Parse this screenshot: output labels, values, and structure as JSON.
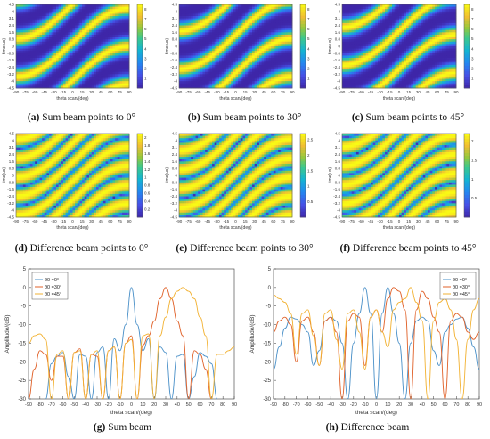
{
  "captions": [
    {
      "letter": "(a)",
      "text": "Sum beam points to 0°"
    },
    {
      "letter": "(b)",
      "text": "Sum beam points to 30°"
    },
    {
      "letter": "(c)",
      "text": "Sum beam points to 45°"
    },
    {
      "letter": "(d)",
      "text": "Difference beam points to 0°"
    },
    {
      "letter": "(e)",
      "text": "Difference beam points to 30°"
    },
    {
      "letter": "(f)",
      "text": "Difference beam points to 45°"
    },
    {
      "letter": "(g)",
      "text": "Sum beam"
    },
    {
      "letter": "(h)",
      "text": "Difference beam"
    }
  ],
  "colors": {
    "series_0": "#4a90c8",
    "series_30": "#e0622a",
    "series_45": "#f2b233",
    "map_low": "#3d2aa0",
    "map_high": "#f7e82d"
  },
  "chart_data": [
    {
      "type": "heatmap",
      "id": "a",
      "xlabel": "theta scan/(deg)",
      "ylabel": "time(us)",
      "xticks": [
        "-90",
        "-75",
        "-60",
        "-45",
        "-30",
        "-15",
        "0",
        "15",
        "30",
        "45",
        "60",
        "75",
        "90"
      ],
      "yticks": [
        "4.5",
        "4",
        "3.1",
        "2.4",
        "1.6",
        "0.8",
        "0",
        "-0.8",
        "-1.6",
        "-2.4",
        "-3.2",
        "-4",
        "-4.5"
      ],
      "colorbar_ticks": [
        "8",
        "7",
        "6",
        "5",
        "4",
        "3",
        "2",
        "1"
      ],
      "xlim": [
        -90,
        90
      ],
      "ylim": [
        -4.5,
        4.5
      ],
      "clim": [
        0,
        8.5
      ],
      "beam_pointing_deg": 0
    },
    {
      "type": "heatmap",
      "id": "b",
      "xlabel": "theta scan/(deg)",
      "ylabel": "time(us)",
      "xticks": [
        "-90",
        "-75",
        "-60",
        "-45",
        "-30",
        "-15",
        "0",
        "15",
        "30",
        "45",
        "60",
        "75",
        "90"
      ],
      "yticks": [
        "4.5",
        "4",
        "3.1",
        "2.4",
        "1.6",
        "0.8",
        "0",
        "-0.8",
        "-1.6",
        "-2.4",
        "-3.2",
        "-4",
        "-4.5"
      ],
      "colorbar_ticks": [
        "8",
        "7",
        "6",
        "5",
        "4",
        "3",
        "2",
        "1"
      ],
      "xlim": [
        -90,
        90
      ],
      "ylim": [
        -4.5,
        4.5
      ],
      "clim": [
        0,
        8.5
      ],
      "beam_pointing_deg": 30
    },
    {
      "type": "heatmap",
      "id": "c",
      "xlabel": "theta scan/(deg)",
      "ylabel": "time(us)",
      "xticks": [
        "-90",
        "-75",
        "-60",
        "-45",
        "-30",
        "-15",
        "0",
        "15",
        "30",
        "45",
        "60",
        "75",
        "90"
      ],
      "yticks": [
        "4.5",
        "4",
        "3.1",
        "2.4",
        "1.6",
        "0.8",
        "0",
        "-0.8",
        "-1.6",
        "-2.4",
        "-3.2",
        "-4",
        "-4.5"
      ],
      "colorbar_ticks": [
        "8",
        "7",
        "6",
        "5",
        "4",
        "3",
        "2",
        "1"
      ],
      "xlim": [
        -90,
        90
      ],
      "ylim": [
        -4.5,
        4.5
      ],
      "clim": [
        0,
        8.5
      ],
      "beam_pointing_deg": 45
    },
    {
      "type": "heatmap",
      "id": "d",
      "xlabel": "theta scan/(deg)",
      "ylabel": "time(us)",
      "xticks": [
        "-90",
        "-75",
        "-60",
        "-45",
        "-30",
        "-15",
        "0",
        "15",
        "30",
        "45",
        "60",
        "75",
        "90"
      ],
      "yticks": [
        "4.5",
        "4",
        "3.1",
        "2.4",
        "1.6",
        "0.8",
        "0",
        "-0.8",
        "-1.6",
        "-2.4",
        "-3.2",
        "-4",
        "-4.5"
      ],
      "colorbar_ticks": [
        "2",
        "1.8",
        "1.6",
        "1.4",
        "1.2",
        "1",
        "0.8",
        "0.6",
        "0.4",
        "0.2"
      ],
      "xlim": [
        -90,
        90
      ],
      "ylim": [
        -4.5,
        4.5
      ],
      "clim": [
        0,
        2.1
      ],
      "beam_pointing_deg": 0
    },
    {
      "type": "heatmap",
      "id": "e",
      "xlabel": "theta scan/(deg)",
      "ylabel": "time(us)",
      "xticks": [
        "-90",
        "-75",
        "-60",
        "-45",
        "-30",
        "-15",
        "0",
        "15",
        "30",
        "45",
        "60",
        "75",
        "90"
      ],
      "yticks": [
        "4.5",
        "4",
        "3.1",
        "2.4",
        "1.6",
        "0.8",
        "0",
        "-0.8",
        "-1.6",
        "-2.4",
        "-3.2",
        "-4",
        "-4.5"
      ],
      "colorbar_ticks": [
        "2.5",
        "2",
        "1.5",
        "1",
        "0.5"
      ],
      "xlim": [
        -90,
        90
      ],
      "ylim": [
        -4.5,
        4.5
      ],
      "clim": [
        0,
        2.7
      ],
      "beam_pointing_deg": 30
    },
    {
      "type": "heatmap",
      "id": "f",
      "xlabel": "theta scan/(deg)",
      "ylabel": "time(us)",
      "xticks": [
        "-90",
        "-75",
        "-60",
        "-45",
        "-30",
        "-15",
        "0",
        "15",
        "30",
        "45",
        "60",
        "75",
        "90"
      ],
      "yticks": [
        "4.5",
        "4",
        "3.1",
        "2.4",
        "1.6",
        "0.8",
        "0",
        "-0.8",
        "-1.6",
        "-2.4",
        "-3.2",
        "-4",
        "-4.5"
      ],
      "colorbar_ticks": [
        "2",
        "1.5",
        "1",
        "0.5"
      ],
      "xlim": [
        -90,
        90
      ],
      "ylim": [
        -4.5,
        4.5
      ],
      "clim": [
        0,
        2.2
      ],
      "beam_pointing_deg": 45
    },
    {
      "type": "line",
      "id": "g",
      "xlabel": "theta scan/(deg)",
      "ylabel": "Amplitude/(dB)",
      "xlim": [
        -90,
        90
      ],
      "ylim": [
        -30,
        5
      ],
      "xticks": [
        -90,
        -80,
        -70,
        -60,
        -50,
        -40,
        -30,
        -20,
        -10,
        0,
        10,
        20,
        30,
        40,
        50,
        60,
        70,
        80,
        90
      ],
      "yticks": [
        5,
        0,
        -5,
        -10,
        -15,
        -20,
        -25,
        -30
      ],
      "legend_position": "top-left",
      "series": [
        {
          "name": "θ0 =0°",
          "color": "#4a90c8",
          "x": [
            -75,
            -70,
            -65,
            -60,
            -55,
            -50,
            -45,
            -40,
            -35,
            -30,
            -25,
            -20,
            -15,
            -10,
            -5,
            0,
            5,
            10,
            15,
            20,
            25,
            30,
            35,
            40,
            45,
            50,
            55,
            60,
            65,
            70,
            75
          ],
          "y": [
            -30,
            -20.5,
            -18.5,
            -17.5,
            -24,
            -30,
            -18,
            -18.5,
            -30,
            -17.5,
            -16,
            -30,
            -13.8,
            -17,
            -10,
            0,
            -10,
            -17,
            -13.8,
            -30,
            -16,
            -17.5,
            -30,
            -18.5,
            -18,
            -30,
            -24,
            -17.5,
            -18.5,
            -20.5,
            -30
          ]
        },
        {
          "name": "θ0 =30°",
          "color": "#e0622a",
          "x": [
            -90,
            -85,
            -80,
            -75,
            -70,
            -65,
            -60,
            -55,
            -50,
            -45,
            -40,
            -35,
            -30,
            -25,
            -20,
            -15,
            -10,
            -5,
            0,
            5,
            10,
            15,
            20,
            25,
            30,
            35,
            40,
            45,
            50,
            55,
            60,
            65,
            70
          ],
          "y": [
            -30,
            -22,
            -17,
            -18,
            -25,
            -18.5,
            -18.5,
            -30,
            -17.5,
            -16.5,
            -30,
            -18,
            -18.5,
            -30,
            -17,
            -16,
            -30,
            -15,
            -13,
            -30,
            -15.5,
            -13,
            -9,
            -3,
            0,
            -3,
            -9,
            -13,
            -30,
            -17,
            -18,
            -22,
            -30
          ]
        },
        {
          "name": "θ0 =45°",
          "color": "#f2b233",
          "x": [
            -90,
            -85,
            -80,
            -75,
            -70,
            -65,
            -60,
            -55,
            -50,
            -45,
            -40,
            -35,
            -30,
            -25,
            -20,
            -15,
            -10,
            -5,
            0,
            5,
            10,
            15,
            20,
            25,
            30,
            35,
            40,
            45,
            50,
            55,
            60,
            65,
            70,
            75,
            80,
            85,
            90
          ],
          "y": [
            -15,
            -13,
            -12.5,
            -14,
            -30,
            -18,
            -17,
            -30,
            -17.5,
            -17,
            -30,
            -18,
            -17,
            -30,
            -17,
            -16,
            -30,
            -15,
            -14,
            -30,
            -13,
            -12.5,
            -30,
            -13,
            -8,
            -3,
            -1,
            0,
            -1,
            -3,
            -8,
            -13,
            -30,
            -18,
            -18,
            -17,
            -16
          ]
        }
      ]
    },
    {
      "type": "line",
      "id": "h",
      "xlabel": "theta scan/(deg)",
      "ylabel": "Amplitude/(dB)",
      "xlim": [
        -90,
        90
      ],
      "ylim": [
        -30,
        5
      ],
      "xticks": [
        -90,
        -80,
        -70,
        -60,
        -50,
        -40,
        -30,
        -20,
        -10,
        0,
        10,
        20,
        30,
        40,
        50,
        60,
        70,
        80,
        90
      ],
      "yticks": [
        5,
        0,
        -5,
        -10,
        -15,
        -20,
        -25,
        -30
      ],
      "legend_position": "top-right",
      "series": [
        {
          "name": "θ0 =0°",
          "color": "#4a90c8",
          "x": [
            -90,
            -85,
            -80,
            -75,
            -70,
            -65,
            -60,
            -55,
            -50,
            -45,
            -40,
            -35,
            -30,
            -25,
            -20,
            -15,
            -10,
            -5,
            0,
            5,
            10,
            15,
            20,
            25,
            30,
            35,
            40,
            45,
            50,
            55,
            60,
            65,
            70,
            75,
            80,
            85,
            90
          ],
          "y": [
            -22,
            -16,
            -11,
            -8,
            -8.5,
            -10,
            -12,
            -21,
            -17,
            -9,
            -8,
            -9,
            -15,
            -30,
            -15,
            -7,
            0,
            -7,
            -30,
            -7,
            0,
            -7,
            -15,
            -30,
            -15,
            -9,
            -8,
            -9,
            -17,
            -21,
            -12,
            -10,
            -8.5,
            -8,
            -11,
            -16,
            -22
          ]
        },
        {
          "name": "θ0 =30°",
          "color": "#e0622a",
          "x": [
            -90,
            -85,
            -80,
            -75,
            -70,
            -65,
            -60,
            -55,
            -50,
            -45,
            -40,
            -35,
            -30,
            -25,
            -20,
            -15,
            -10,
            -5,
            0,
            5,
            10,
            15,
            20,
            25,
            30,
            35,
            40,
            45,
            50,
            55,
            60,
            65,
            70,
            75,
            80,
            85,
            90
          ],
          "y": [
            -12,
            -9,
            -8,
            -10,
            -20,
            -9,
            -8,
            -12,
            -21,
            -9,
            -8,
            -12,
            -30,
            -9,
            -7,
            -8,
            -21,
            -8,
            -6,
            -12,
            -3,
            0,
            -1,
            -6,
            -30,
            -6,
            -1,
            -3,
            -8,
            -12,
            -30,
            -9,
            -7,
            -8,
            -12,
            -14,
            -12
          ]
        },
        {
          "name": "θ0 =45°",
          "color": "#f2b233",
          "x": [
            -90,
            -85,
            -80,
            -75,
            -70,
            -65,
            -60,
            -55,
            -50,
            -45,
            -40,
            -35,
            -30,
            -25,
            -20,
            -15,
            -10,
            -5,
            0,
            5,
            10,
            15,
            20,
            25,
            30,
            35,
            40,
            45,
            50,
            55,
            60,
            65,
            70,
            75,
            80,
            85,
            90
          ],
          "y": [
            -2,
            -3,
            -4,
            -7,
            -18,
            -7,
            -6,
            -13,
            -21,
            -7,
            -6,
            -14,
            -22,
            -7,
            -6,
            -12,
            -22,
            -8,
            -6,
            -12,
            -16,
            -6,
            -4,
            -3,
            0,
            -4,
            -9,
            -30,
            -9,
            -4,
            -3,
            -6,
            -14,
            -30,
            -14,
            -6,
            -3
          ]
        }
      ]
    }
  ]
}
